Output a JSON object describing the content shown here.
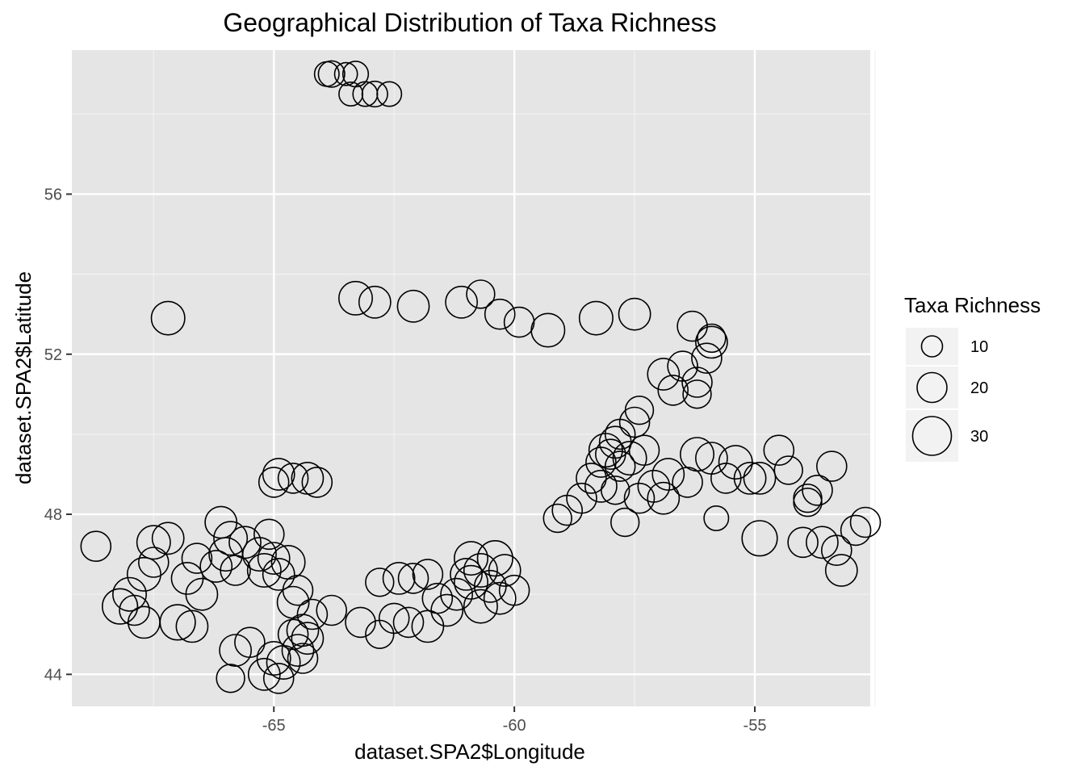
{
  "chart_data": {
    "type": "scatter",
    "title": "Geographical Distribution of Taxa Richness",
    "xlabel": "dataset.SPA2$Longitude",
    "ylabel": "dataset.SPA2$Latitude",
    "xlim": [
      -69.2,
      -52.6
    ],
    "ylim": [
      43.2,
      59.6
    ],
    "x_ticks": [
      -65,
      -60,
      -55
    ],
    "y_ticks": [
      44,
      48,
      52,
      56
    ],
    "x_minor": [
      -67.5,
      -62.5,
      -57.5,
      -52.5
    ],
    "y_minor": [
      46,
      50,
      54,
      58
    ],
    "grid": true,
    "background": "#e5e5e5",
    "legend": {
      "title": "Taxa Richness",
      "position": "right",
      "entries": [
        {
          "label": "10",
          "value": 10
        },
        {
          "label": "20",
          "value": 20
        },
        {
          "label": "30",
          "value": 30
        }
      ]
    },
    "size_range": [
      10,
      30
    ],
    "points": [
      [
        -63.9,
        59.0,
        14
      ],
      [
        -63.8,
        59.0,
        16
      ],
      [
        -63.5,
        59.0,
        12
      ],
      [
        -63.3,
        59.0,
        15
      ],
      [
        -63.4,
        58.5,
        13
      ],
      [
        -63.1,
        58.5,
        14
      ],
      [
        -62.9,
        58.5,
        15
      ],
      [
        -62.6,
        58.5,
        14
      ],
      [
        -67.2,
        52.9,
        24
      ],
      [
        -63.3,
        53.4,
        24
      ],
      [
        -62.9,
        53.3,
        22
      ],
      [
        -62.1,
        53.2,
        22
      ],
      [
        -61.1,
        53.3,
        22
      ],
      [
        -60.7,
        53.5,
        18
      ],
      [
        -60.3,
        53.0,
        20
      ],
      [
        -59.9,
        52.8,
        20
      ],
      [
        -59.3,
        52.6,
        24
      ],
      [
        -58.3,
        52.9,
        24
      ],
      [
        -57.5,
        53.0,
        22
      ],
      [
        -56.3,
        52.7,
        20
      ],
      [
        -55.9,
        52.3,
        22
      ],
      [
        -55.9,
        52.4,
        18
      ],
      [
        -56.0,
        51.9,
        20
      ],
      [
        -56.5,
        51.7,
        20
      ],
      [
        -56.9,
        51.5,
        22
      ],
      [
        -56.2,
        51.3,
        20
      ],
      [
        -56.2,
        51.0,
        18
      ],
      [
        -56.7,
        51.1,
        20
      ],
      [
        -57.4,
        50.6,
        18
      ],
      [
        -57.5,
        50.3,
        20
      ],
      [
        -57.8,
        50.0,
        20
      ],
      [
        -58.1,
        49.6,
        24
      ],
      [
        -58.2,
        49.3,
        20
      ],
      [
        -58.4,
        48.9,
        20
      ],
      [
        -58.2,
        48.7,
        22
      ],
      [
        -57.9,
        48.6,
        18
      ],
      [
        -58.6,
        48.4,
        20
      ],
      [
        -58.9,
        48.1,
        20
      ],
      [
        -59.1,
        47.9,
        18
      ],
      [
        -57.7,
        47.8,
        18
      ],
      [
        -57.4,
        48.4,
        20
      ],
      [
        -57.1,
        48.7,
        22
      ],
      [
        -56.9,
        48.4,
        22
      ],
      [
        -56.8,
        49.0,
        22
      ],
      [
        -56.4,
        48.8,
        20
      ],
      [
        -56.2,
        49.5,
        24
      ],
      [
        -55.9,
        49.4,
        22
      ],
      [
        -55.6,
        48.9,
        20
      ],
      [
        -55.4,
        49.3,
        24
      ],
      [
        -55.1,
        48.9,
        22
      ],
      [
        -54.9,
        48.9,
        22
      ],
      [
        -54.5,
        49.6,
        20
      ],
      [
        -54.3,
        49.1,
        18
      ],
      [
        -55.8,
        47.9,
        14
      ],
      [
        -54.9,
        47.4,
        26
      ],
      [
        -53.9,
        48.4,
        18
      ],
      [
        -53.7,
        48.6,
        20
      ],
      [
        -53.9,
        48.3,
        18
      ],
      [
        -53.4,
        49.2,
        20
      ],
      [
        -54.0,
        47.3,
        20
      ],
      [
        -53.6,
        47.3,
        22
      ],
      [
        -53.3,
        47.1,
        20
      ],
      [
        -53.2,
        46.6,
        22
      ],
      [
        -52.9,
        47.6,
        20
      ],
      [
        -52.7,
        47.8,
        20
      ],
      [
        -58.0,
        49.5,
        20
      ],
      [
        -57.9,
        49.8,
        22
      ],
      [
        -57.8,
        49.2,
        20
      ],
      [
        -57.3,
        49.6,
        20
      ],
      [
        -57.6,
        49.4,
        24
      ],
      [
        -68.7,
        47.2,
        20
      ],
      [
        -67.5,
        47.3,
        24
      ],
      [
        -67.2,
        47.4,
        22
      ],
      [
        -67.7,
        46.5,
        24
      ],
      [
        -67.5,
        46.8,
        20
      ],
      [
        -68.0,
        46.0,
        24
      ],
      [
        -68.2,
        45.7,
        26
      ],
      [
        -67.9,
        45.6,
        20
      ],
      [
        -67.7,
        45.3,
        22
      ],
      [
        -67.0,
        45.3,
        26
      ],
      [
        -66.7,
        45.2,
        22
      ],
      [
        -66.5,
        46.0,
        22
      ],
      [
        -66.8,
        46.4,
        22
      ],
      [
        -66.6,
        46.9,
        20
      ],
      [
        -66.2,
        46.7,
        22
      ],
      [
        -66.0,
        47.0,
        24
      ],
      [
        -66.1,
        47.8,
        22
      ],
      [
        -65.9,
        47.4,
        24
      ],
      [
        -65.6,
        47.3,
        22
      ],
      [
        -65.3,
        47.0,
        24
      ],
      [
        -65.2,
        46.6,
        24
      ],
      [
        -65.0,
        46.9,
        22
      ],
      [
        -64.9,
        46.5,
        22
      ],
      [
        -64.7,
        46.8,
        24
      ],
      [
        -65.8,
        46.6,
        20
      ],
      [
        -65.1,
        47.5,
        20
      ],
      [
        -64.5,
        46.1,
        20
      ],
      [
        -64.6,
        45.8,
        22
      ],
      [
        -64.2,
        45.5,
        20
      ],
      [
        -64.4,
        45.1,
        22
      ],
      [
        -63.8,
        45.6,
        20
      ],
      [
        -63.2,
        45.3,
        20
      ],
      [
        -62.8,
        45.0,
        18
      ],
      [
        -62.5,
        45.4,
        20
      ],
      [
        -62.2,
        45.3,
        20
      ],
      [
        -61.8,
        45.2,
        22
      ],
      [
        -62.4,
        46.4,
        22
      ],
      [
        -62.1,
        46.4,
        20
      ],
      [
        -61.8,
        46.5,
        20
      ],
      [
        -62.8,
        46.3,
        18
      ],
      [
        -65.8,
        44.6,
        22
      ],
      [
        -65.5,
        44.8,
        20
      ],
      [
        -65.0,
        44.4,
        24
      ],
      [
        -64.8,
        44.3,
        24
      ],
      [
        -65.2,
        44.0,
        22
      ],
      [
        -64.9,
        43.9,
        20
      ],
      [
        -64.5,
        44.6,
        22
      ],
      [
        -64.3,
        44.9,
        22
      ],
      [
        -64.6,
        45.0,
        20
      ],
      [
        -65.9,
        43.9,
        18
      ],
      [
        -64.4,
        44.4,
        20
      ],
      [
        -65.0,
        48.8,
        20
      ],
      [
        -64.9,
        49.0,
        22
      ],
      [
        -64.6,
        48.9,
        20
      ],
      [
        -64.3,
        48.9,
        22
      ],
      [
        -64.1,
        48.8,
        20
      ],
      [
        -61.4,
        45.6,
        22
      ],
      [
        -61.6,
        45.9,
        20
      ],
      [
        -61.2,
        46.0,
        22
      ],
      [
        -60.9,
        46.3,
        24
      ],
      [
        -60.7,
        46.6,
        24
      ],
      [
        -60.4,
        46.9,
        26
      ],
      [
        -60.2,
        46.6,
        22
      ],
      [
        -60.5,
        46.2,
        22
      ],
      [
        -60.7,
        45.7,
        24
      ],
      [
        -60.3,
        45.9,
        22
      ],
      [
        -60.0,
        46.1,
        20
      ],
      [
        -60.9,
        46.9,
        24
      ],
      [
        -61.0,
        46.5,
        22
      ]
    ]
  }
}
